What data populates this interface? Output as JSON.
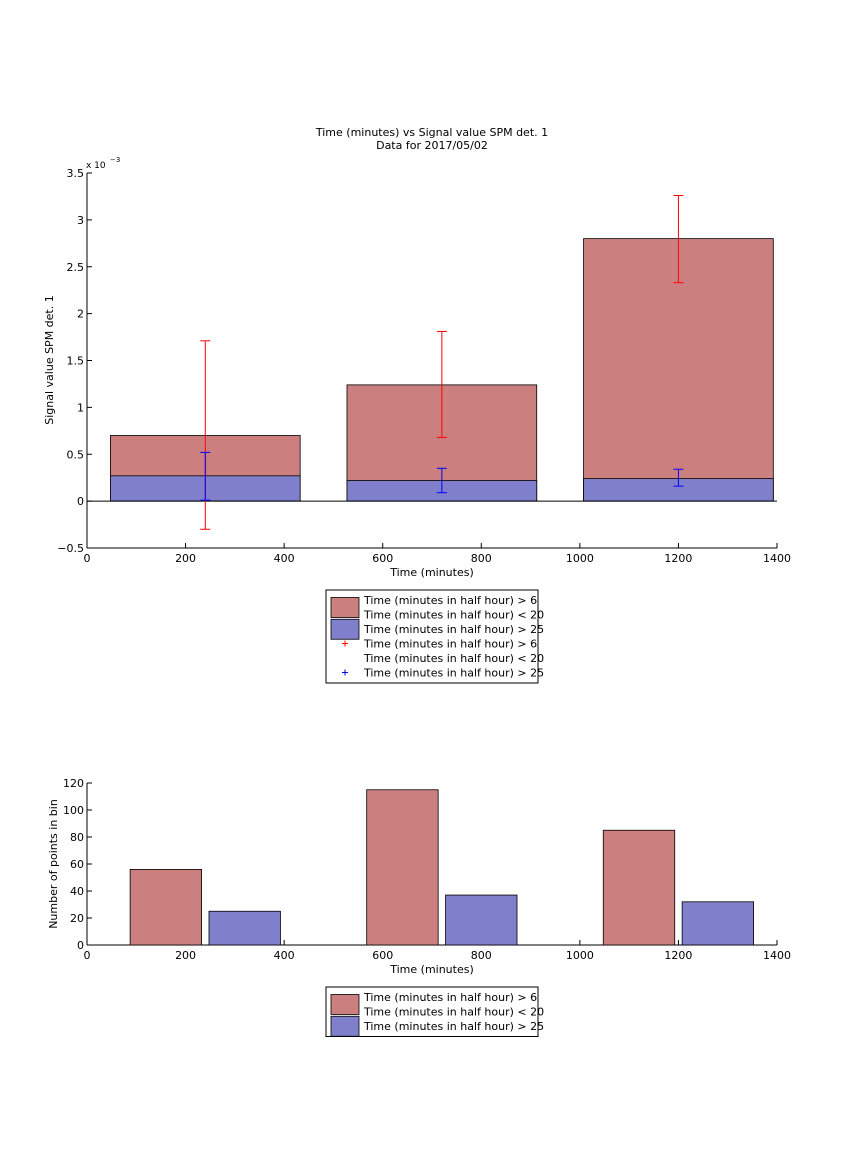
{
  "chart_data": [
    {
      "type": "bar",
      "title": "Time (minutes) vs Signal value SPM det. 1",
      "subtitle": "Data for 2017/05/02",
      "xlabel": "Time (minutes)",
      "ylabel": "Signal value SPM det. 1",
      "exponent_label": "x 10",
      "exponent_power": "−3",
      "xlim": [
        0,
        1400
      ],
      "ylim": [
        -0.5,
        3.5
      ],
      "xticks": [
        "0",
        "200",
        "400",
        "600",
        "800",
        "1000",
        "1200",
        "1400"
      ],
      "yticks": [
        "−0.5",
        "0",
        "0.5",
        "1",
        "1.5",
        "2",
        "2.5",
        "3",
        "3.5"
      ],
      "bar_width": 385,
      "x": [
        240,
        720,
        1200
      ],
      "series": [
        {
          "name": "Time (minutes in half hour) > 6 Time (minutes in half hour) < 20",
          "color": "#cc7f7f",
          "values": [
            0.7,
            1.24,
            2.8
          ],
          "error_color": "#ff0000",
          "error_low": [
            -0.3,
            0.68,
            2.33
          ],
          "error_high": [
            1.71,
            1.81,
            3.26
          ]
        },
        {
          "name": "Time (minutes in half hour) > 25",
          "color": "#7f7fcc",
          "values": [
            0.27,
            0.22,
            0.24
          ],
          "error_color": "#0000ff",
          "error_low": [
            0.01,
            0.09,
            0.16
          ],
          "error_high": [
            0.52,
            0.35,
            0.34
          ]
        }
      ],
      "legend": [
        {
          "kind": "patch",
          "color": "#cc7f7f",
          "lines": [
            "Time (minutes in half hour) > 6",
            "Time (minutes in half hour) < 20"
          ]
        },
        {
          "kind": "patch",
          "color": "#7f7fcc",
          "lines": [
            "Time (minutes in half hour) > 25"
          ]
        },
        {
          "kind": "marker",
          "color": "#ff0000",
          "lines": [
            "Time (minutes in half hour) > 6",
            "Time (minutes in half hour) < 20"
          ]
        },
        {
          "kind": "marker",
          "color": "#0000ff",
          "lines": [
            "Time (minutes in half hour) > 25"
          ]
        }
      ],
      "legend_placement": "below"
    },
    {
      "type": "bar",
      "xlabel": "Time (minutes)",
      "ylabel": "Number of points in bin",
      "xlim": [
        0,
        1400
      ],
      "ylim": [
        0,
        120
      ],
      "xticks": [
        "0",
        "200",
        "400",
        "600",
        "800",
        "1000",
        "1200",
        "1400"
      ],
      "yticks": [
        "0",
        "20",
        "40",
        "60",
        "80",
        "100",
        "120"
      ],
      "bar_width": 145,
      "series": [
        {
          "name": "Time (minutes in half hour) > 6 Time (minutes in half hour) < 20",
          "color": "#cc7f7f",
          "x": [
            160,
            640,
            1120
          ],
          "values": [
            56,
            115,
            85
          ]
        },
        {
          "name": "Time (minutes in half hour) > 25",
          "color": "#7f7fcc",
          "x": [
            320,
            800,
            1280
          ],
          "values": [
            25,
            37,
            32
          ]
        }
      ],
      "legend": [
        {
          "kind": "patch",
          "color": "#cc7f7f",
          "lines": [
            "Time (minutes in half hour) > 6",
            "Time (minutes in half hour) < 20"
          ]
        },
        {
          "kind": "patch",
          "color": "#7f7fcc",
          "lines": [
            "Time (minutes in half hour) > 25"
          ]
        }
      ],
      "legend_placement": "below"
    }
  ]
}
